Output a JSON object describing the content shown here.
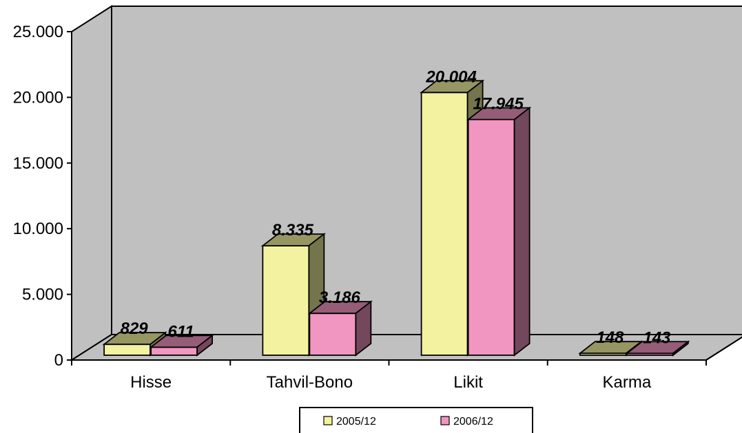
{
  "chart_data": {
    "type": "bar",
    "categories": [
      "Hisse",
      "Tahvil-Bono",
      "Likit",
      "Karma"
    ],
    "series": [
      {
        "name": "2005/12",
        "values": [
          829,
          8335,
          20004,
          148
        ],
        "labels": [
          "829",
          "8.335",
          "20.004",
          "148"
        ],
        "color": "#F2F2A0"
      },
      {
        "name": "2006/12",
        "values": [
          611,
          3186,
          17945,
          143
        ],
        "labels": [
          "611",
          "3.186",
          "17.945",
          "143"
        ],
        "color": "#F096C0"
      }
    ],
    "yticks": [
      "0",
      "5.000",
      "10.000",
      "15.000",
      "20.000",
      "25.000"
    ],
    "ylim": [
      0,
      25000
    ],
    "wall_color": "#C0C0C0",
    "legend_position": "bottom",
    "grid": false,
    "style": "3d-clustered-column"
  }
}
